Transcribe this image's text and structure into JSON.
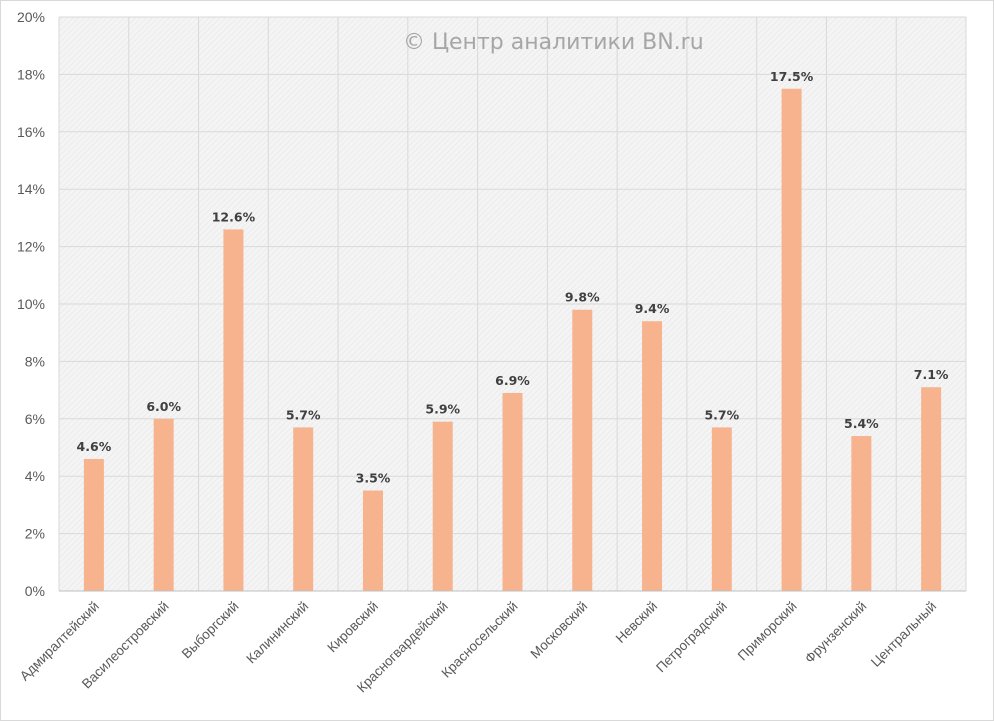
{
  "watermark": "© Центр аналитики BN.ru",
  "colors": {
    "bar": "#F7B38E",
    "grid": "#d9d9d9",
    "plot_bg": "#f2f2f2",
    "axis_text": "#595959",
    "label_text": "#404040",
    "watermark": "#a6a6a6"
  },
  "chart_data": {
    "type": "bar",
    "title": "",
    "xlabel": "",
    "ylabel": "",
    "ylim": [
      0,
      20
    ],
    "y_ticks": [
      0,
      2,
      4,
      6,
      8,
      10,
      12,
      14,
      16,
      18,
      20
    ],
    "y_tick_labels": [
      "0%",
      "2%",
      "4%",
      "6%",
      "8%",
      "10%",
      "12%",
      "14%",
      "16%",
      "18%",
      "20%"
    ],
    "grid": true,
    "legend": "none",
    "categories": [
      "Адмиралтейский",
      "Василеостровский",
      "Выборгский",
      "Калининский",
      "Кировский",
      "Красногвардейский",
      "Красносельский",
      "Московский",
      "Невский",
      "Петроградский",
      "Приморский",
      "Фрунзенский",
      "Центральный"
    ],
    "values": [
      4.6,
      6.0,
      12.6,
      5.7,
      3.5,
      5.9,
      6.9,
      9.8,
      9.4,
      5.7,
      17.5,
      5.4,
      7.1
    ],
    "data_labels": [
      "4.6%",
      "6.0%",
      "12.6%",
      "5.7%",
      "3.5%",
      "5.9%",
      "6.9%",
      "9.8%",
      "9.4%",
      "5.7%",
      "17.5%",
      "5.4%",
      "7.1%"
    ]
  }
}
